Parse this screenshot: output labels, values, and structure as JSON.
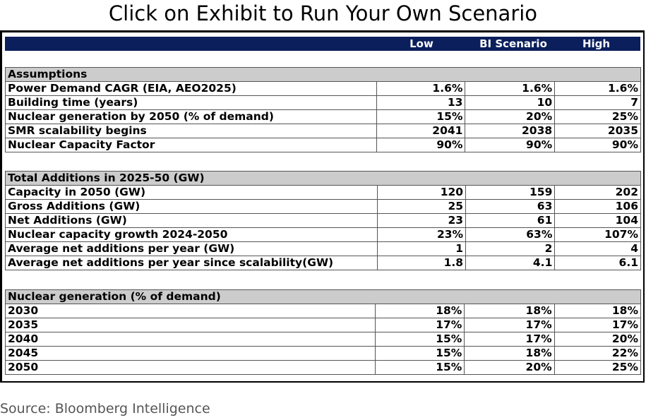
{
  "title": "Click on Exhibit to Run Your Own Scenario",
  "columns": [
    "Low",
    "BI Scenario",
    "High"
  ],
  "sections": [
    {
      "header": "Assumptions",
      "rows": [
        {
          "label": "Power Demand CAGR (EIA, AEO2025)",
          "values": [
            "1.6%",
            "1.6%",
            "1.6%"
          ]
        },
        {
          "label": "Building time (years)",
          "values": [
            "13",
            "10",
            "7"
          ]
        },
        {
          "label": "Nuclear generation by 2050 (% of demand)",
          "values": [
            "15%",
            "20%",
            "25%"
          ]
        },
        {
          "label": "SMR scalability begins",
          "values": [
            "2041",
            "2038",
            "2035"
          ]
        },
        {
          "label": "Nuclear Capacity Factor",
          "values": [
            "90%",
            "90%",
            "90%"
          ]
        }
      ]
    },
    {
      "header": "Total Additions in 2025-50 (GW)",
      "rows": [
        {
          "label": "Capacity in 2050 (GW)",
          "values": [
            "120",
            "159",
            "202"
          ]
        },
        {
          "label": "Gross Additions (GW)",
          "values": [
            "25",
            "63",
            "106"
          ]
        },
        {
          "label": "Net Additions (GW)",
          "values": [
            "23",
            "61",
            "104"
          ]
        },
        {
          "label": "Nuclear capacity growth 2024-2050",
          "values": [
            "23%",
            "63%",
            "107%"
          ]
        },
        {
          "label": "Average net additions per year (GW)",
          "values": [
            "1",
            "2",
            "4"
          ]
        },
        {
          "label": "Average net additions per year since scalability(GW)",
          "values": [
            "1.8",
            "4.1",
            "6.1"
          ]
        }
      ]
    },
    {
      "header": "Nuclear generation (% of demand)",
      "rows": [
        {
          "label": "2030",
          "values": [
            "18%",
            "18%",
            "18%"
          ]
        },
        {
          "label": "2035",
          "values": [
            "17%",
            "17%",
            "17%"
          ]
        },
        {
          "label": "2040",
          "values": [
            "15%",
            "17%",
            "20%"
          ]
        },
        {
          "label": "2045",
          "values": [
            "15%",
            "18%",
            "22%"
          ]
        },
        {
          "label": "2050",
          "values": [
            "15%",
            "20%",
            "25%"
          ]
        }
      ]
    }
  ],
  "source": "Source: Bloomberg Intelligence"
}
